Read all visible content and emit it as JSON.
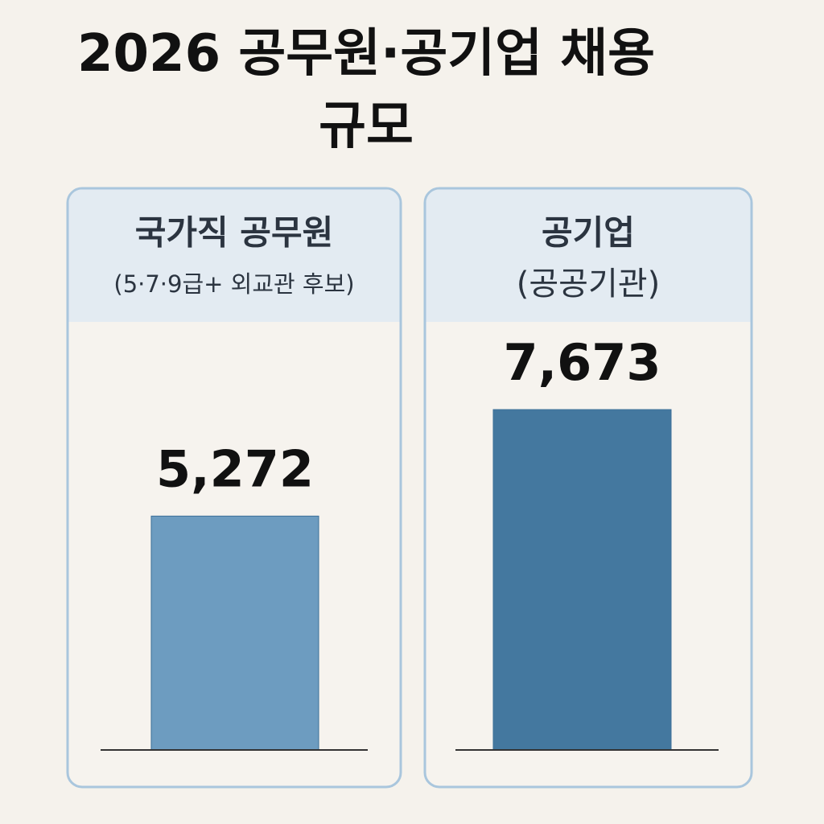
{
  "chart_data": {
    "type": "bar",
    "title": "2026 공무원·공기업 채용 규모",
    "categories": [
      "국가직 공무원",
      "공기업"
    ],
    "subcategories": [
      "(5·7·9급+ 외교관 후보)",
      "(공공기관)"
    ],
    "values": [
      5272,
      7673
    ],
    "value_labels": [
      "5,272",
      "7,673"
    ],
    "colors": [
      "#6d9cc0",
      "#44789f"
    ]
  }
}
